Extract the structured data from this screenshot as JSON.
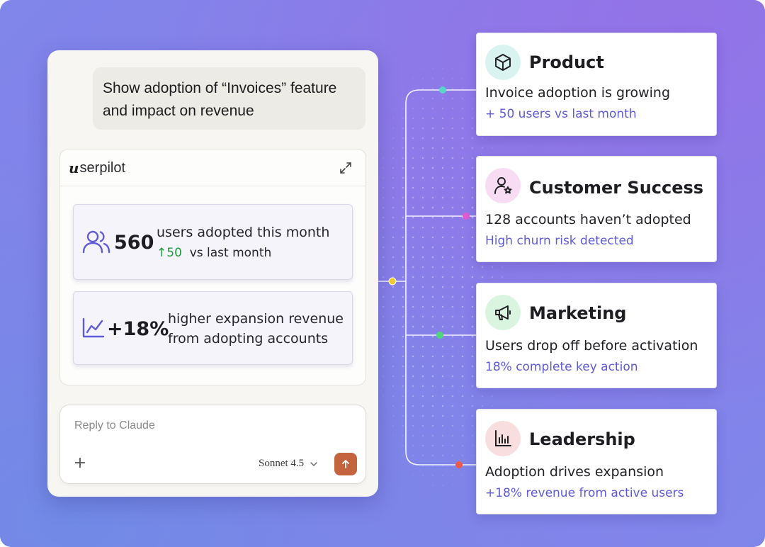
{
  "chat": {
    "prompt": "Show adoption of “Invoices” feature and impact on revenue",
    "artifact": {
      "brand": "serpilot",
      "brand_mark": "u",
      "expand_icon": "expand-icon",
      "metrics": [
        {
          "icon": "users-icon",
          "value": "560",
          "label": "users adopted this month",
          "delta_arrow": "↑",
          "delta_value": "50",
          "delta_suffix": "vs last month",
          "delta_color": "#1e9a3a"
        },
        {
          "icon": "trend-chart-icon",
          "value": "+18%",
          "label_line1": "higher expansion revenue",
          "label_line2": "from adopting accounts"
        }
      ]
    },
    "reply": {
      "placeholder": "Reply to Claude",
      "value": "",
      "plus_label": "+",
      "model": "Sonnet 4.5",
      "send_color": "#c4643f"
    }
  },
  "cards": [
    {
      "title": "Product",
      "icon": "cube-icon",
      "icon_bg": "#d9f3f1",
      "line": "Invoice adoption is growing",
      "sub": "+ 50 users vs last month",
      "dot_color": "#5ad6c8"
    },
    {
      "title": "Customer Success",
      "icon": "user-star-icon",
      "icon_bg": "#f7dcf3",
      "line": "128 accounts haven’t adopted",
      "sub": "High churn risk detected",
      "dot_color": "#e05ad0"
    },
    {
      "title": "Marketing",
      "icon": "megaphone-icon",
      "icon_bg": "#daf5df",
      "line": "Users drop off before activation",
      "sub": "18% complete key action",
      "dot_color": "#4fd57a"
    },
    {
      "title": "Leadership",
      "icon": "bar-chart-icon",
      "icon_bg": "#f8dede",
      "line": "Adoption drives expansion",
      "sub": "+18% revenue from active users",
      "dot_color": "#ee5a4a"
    }
  ],
  "colors": {
    "accent": "#5f5ad8",
    "hub_dot": "#f5d02a",
    "background": "#8683ea"
  }
}
